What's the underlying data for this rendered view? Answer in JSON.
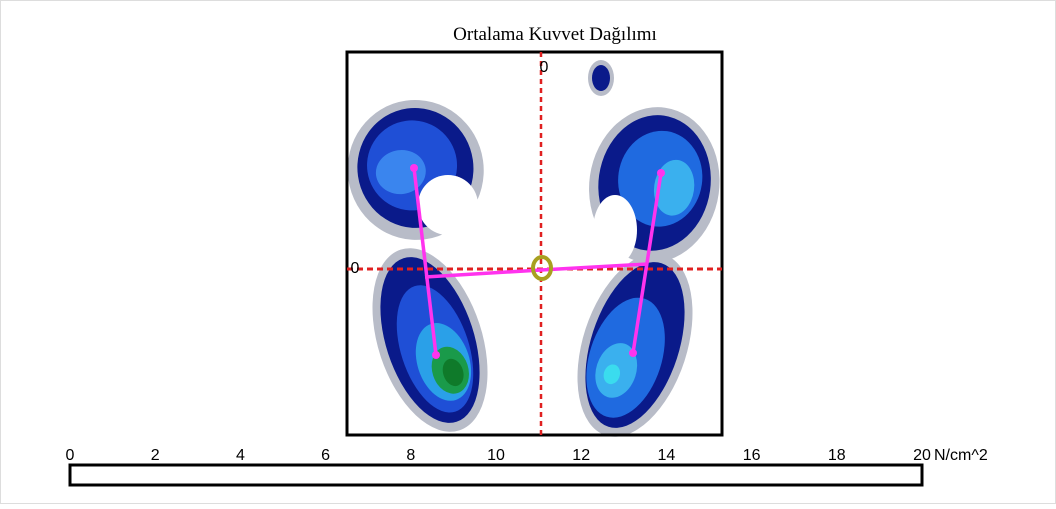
{
  "title": "Ortalama Kuvvet Dağılımı",
  "plot": {
    "axis_labels": [
      "0",
      "0"
    ]
  },
  "scale": {
    "lim": [
      0,
      20
    ],
    "ticks": [
      0,
      2,
      4,
      6,
      8,
      10,
      12,
      14,
      16,
      18,
      20
    ],
    "unit": "N/cm^2"
  }
}
